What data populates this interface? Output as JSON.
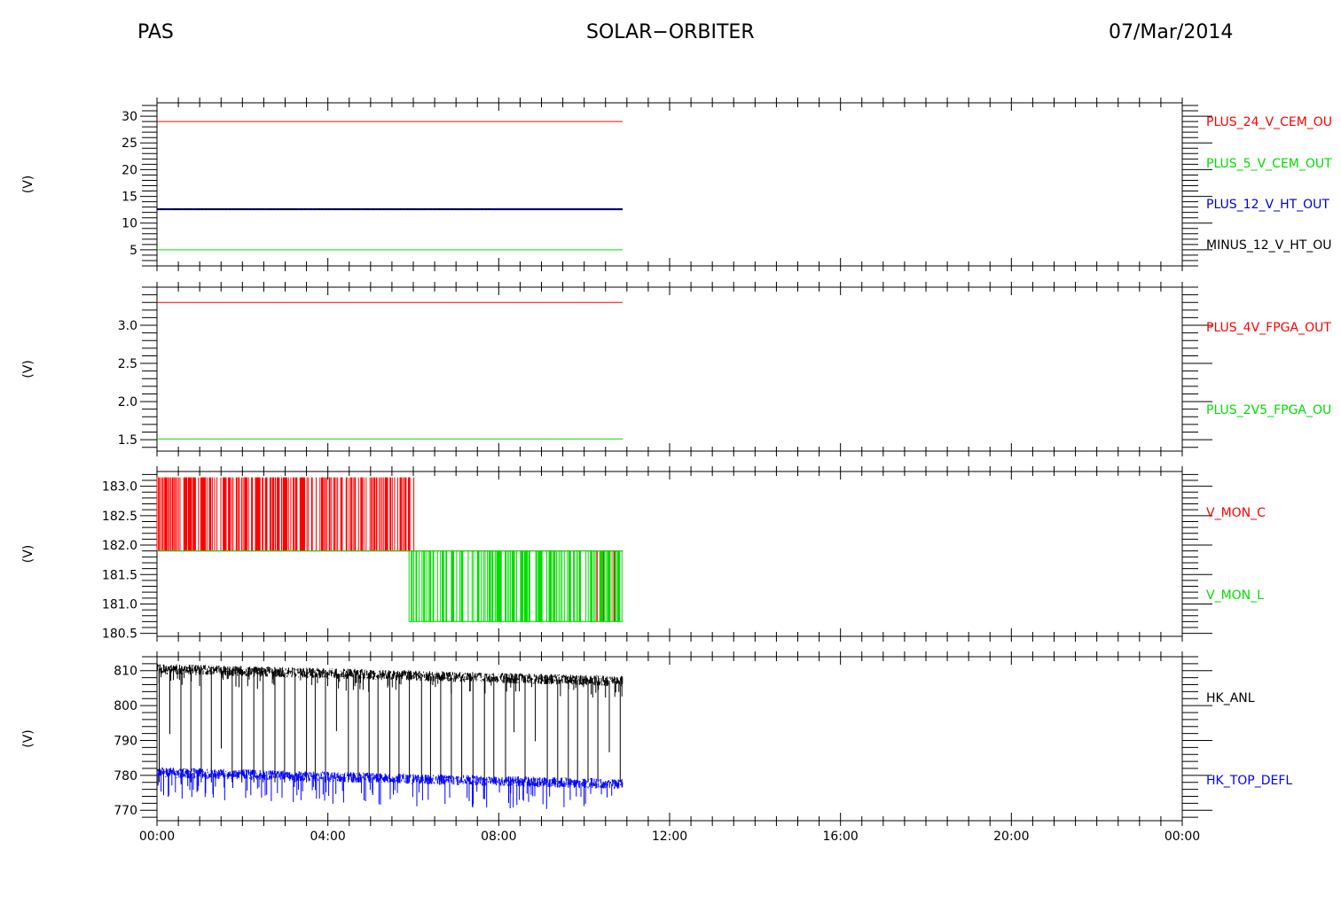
{
  "header": {
    "left": "PAS",
    "center": "SOLAR−ORBITER",
    "right": "07/Mar/2014"
  },
  "chart_data": [
    {
      "type": "line",
      "ylabel": "(V)",
      "ylim": [
        2,
        32.5
      ],
      "yticks": [
        5,
        10,
        15,
        20,
        25,
        30
      ],
      "ytick_labels": [
        "5",
        "10",
        "15",
        "20",
        "25",
        "30"
      ],
      "x_range_hours": [
        0,
        24
      ],
      "data_end_hours": 10.9,
      "legend_position": "right",
      "series": [
        {
          "name": "PLUS_24_V_CEM_OU",
          "color": "#ff0000",
          "style": "flat",
          "values": [
            29.0
          ]
        },
        {
          "name": "PLUS_5_V_CEM_OUT",
          "color": "#00dd00",
          "style": "flat",
          "values": [
            5.0
          ]
        },
        {
          "name": "PLUS_12_V_HT_OUT",
          "color": "#0000cc",
          "style": "flat",
          "values": [
            12.6
          ]
        },
        {
          "name": "MINUS_12_V_HT_OU",
          "color": "#000000",
          "style": "flat",
          "values": [
            12.5
          ]
        }
      ]
    },
    {
      "type": "line",
      "ylabel": "(V)",
      "ylim": [
        1.35,
        3.5
      ],
      "yticks": [
        1.5,
        2.0,
        2.5,
        3.0
      ],
      "ytick_labels": [
        "1.5",
        "2.0",
        "2.5",
        "3.0"
      ],
      "x_range_hours": [
        0,
        24
      ],
      "data_end_hours": 10.9,
      "legend_position": "right",
      "series": [
        {
          "name": "PLUS_4V_FPGA_OUT",
          "color": "#ff0000",
          "style": "flat",
          "values": [
            3.3
          ]
        },
        {
          "name": "PLUS_2V5_FPGA_OU",
          "color": "#00dd00",
          "style": "flat",
          "values": [
            1.51
          ]
        }
      ]
    },
    {
      "type": "line",
      "ylabel": "(V)",
      "ylim": [
        180.45,
        183.25
      ],
      "yticks": [
        180.5,
        181.0,
        181.5,
        182.0,
        182.5,
        183.0
      ],
      "ytick_labels": [
        "180.5",
        "181.0",
        "181.5",
        "182.0",
        "182.5",
        "183.0"
      ],
      "x_range_hours": [
        0,
        24
      ],
      "data_end_hours": 10.9,
      "legend_position": "right",
      "series": [
        {
          "name": "V_MON_C",
          "color": "#ff0000",
          "style": "toggle",
          "low": 181.9,
          "high": 183.15,
          "active_until_hours": 6.05,
          "after_level": 181.9
        },
        {
          "name": "V_MON_L",
          "color": "#00dd00",
          "style": "toggle",
          "low": 180.7,
          "high": 181.9,
          "active_from_hours": 5.9,
          "before_level": 181.9
        }
      ]
    },
    {
      "type": "line",
      "ylabel": "(V)",
      "ylim": [
        767,
        814
      ],
      "yticks": [
        770,
        780,
        790,
        800,
        810
      ],
      "ytick_labels": [
        "770",
        "780",
        "790",
        "800",
        "810"
      ],
      "x_range_hours": [
        0,
        24
      ],
      "data_end_hours": 10.9,
      "legend_position": "right",
      "series": [
        {
          "name": "HK_ANL",
          "color": "#000000",
          "style": "noisy",
          "start": 810.5,
          "end": 807.0,
          "dips_to": 778
        },
        {
          "name": "HK_TOP_DEFL",
          "color": "#0000ff",
          "style": "noisy",
          "start": 780.8,
          "end": 777.5
        }
      ]
    }
  ],
  "x_axis": {
    "ticks_hours": [
      0,
      4,
      8,
      12,
      16,
      20,
      24
    ],
    "tick_labels": [
      "00:00",
      "04:00",
      "08:00",
      "12:00",
      "16:00",
      "20:00",
      "00:00"
    ]
  }
}
